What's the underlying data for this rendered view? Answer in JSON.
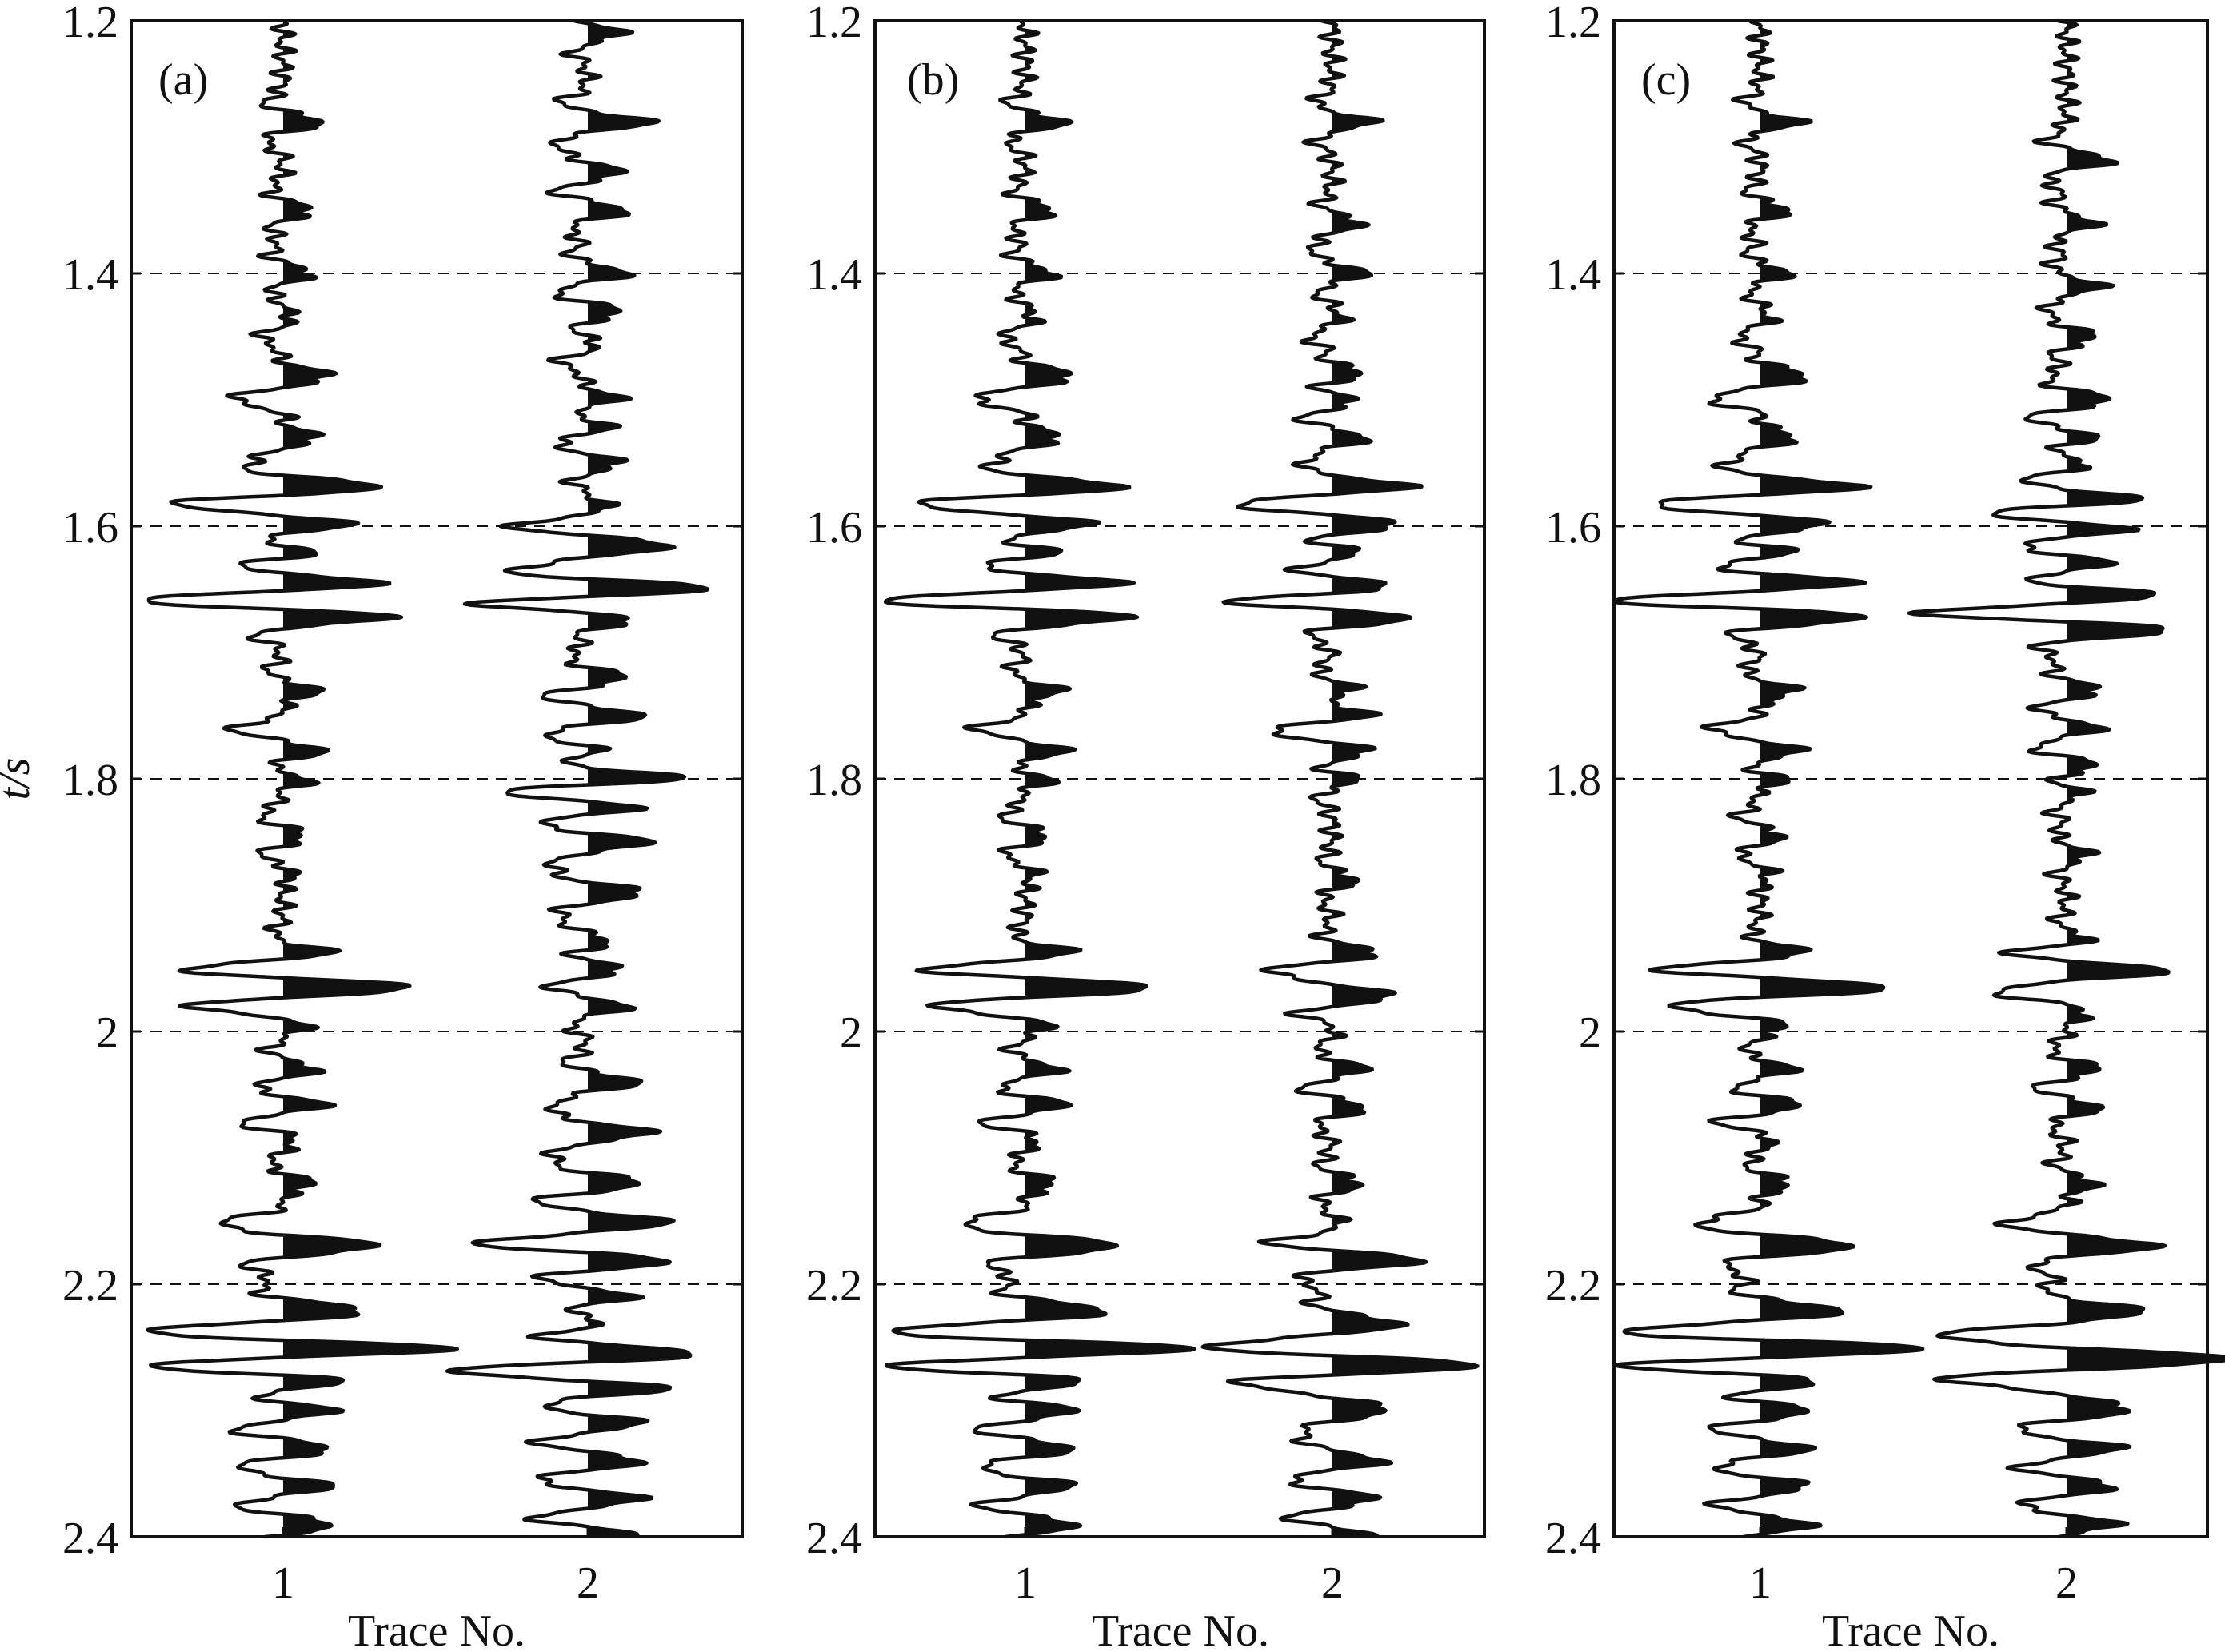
{
  "chart_data": [
    {
      "type": "seismic-wiggle",
      "panel_label": "(a)",
      "xlabel": "Trace No.",
      "ylabel": "t/s",
      "x_ticks": [
        "1",
        "2"
      ],
      "y_ticks": [
        "1.2",
        "1.4",
        "1.6",
        "1.8",
        "2",
        "2.2",
        "2.4"
      ],
      "ylim": [
        1.2,
        2.4
      ],
      "grid": "dashed horizontal at y ticks",
      "traces": [
        {
          "trace": 1,
          "events": [
            [
              1.28,
              0.35
            ],
            [
              1.35,
              0.25
            ],
            [
              1.4,
              0.25
            ],
            [
              1.45,
              -0.2
            ],
            [
              1.48,
              0.3
            ],
            [
              1.5,
              -0.35
            ],
            [
              1.53,
              0.3
            ],
            [
              1.57,
              0.75
            ],
            [
              1.58,
              -0.55
            ],
            [
              1.6,
              0.55
            ],
            [
              1.62,
              0.5
            ],
            [
              1.645,
              0.6
            ],
            [
              1.66,
              -0.85
            ],
            [
              1.67,
              0.75
            ],
            [
              1.73,
              0.3
            ],
            [
              1.76,
              -0.35
            ],
            [
              1.78,
              0.3
            ],
            [
              1.8,
              0.3
            ],
            [
              1.83,
              -0.2
            ],
            [
              1.86,
              -0.2
            ],
            [
              1.94,
              0.3
            ],
            [
              1.95,
              -0.5
            ],
            [
              1.965,
              0.75
            ],
            [
              1.98,
              -0.5
            ],
            [
              2.03,
              0.3
            ],
            [
              2.06,
              0.3
            ],
            [
              2.07,
              -0.3
            ],
            [
              2.12,
              0.25
            ],
            [
              2.15,
              -0.3
            ],
            [
              2.17,
              0.75
            ],
            [
              2.22,
              0.5
            ],
            [
              2.24,
              -0.8
            ],
            [
              2.25,
              1.0
            ],
            [
              2.265,
              -0.75
            ],
            [
              2.275,
              0.45
            ],
            [
              2.3,
              0.5
            ],
            [
              2.33,
              0.45
            ],
            [
              2.36,
              0.45
            ],
            [
              2.39,
              0.45
            ]
          ]
        },
        {
          "trace": 2,
          "events": [
            [
              1.21,
              0.3
            ],
            [
              1.28,
              0.55
            ],
            [
              1.32,
              0.3
            ],
            [
              1.35,
              0.35
            ],
            [
              1.4,
              0.35
            ],
            [
              1.43,
              0.3
            ],
            [
              1.47,
              -0.25
            ],
            [
              1.5,
              0.35
            ],
            [
              1.52,
              0.3
            ],
            [
              1.55,
              0.3
            ],
            [
              1.6,
              -0.45
            ],
            [
              1.615,
              0.5
            ],
            [
              1.64,
              -0.3
            ],
            [
              1.65,
              1.0
            ],
            [
              1.66,
              -0.75
            ],
            [
              1.67,
              0.3
            ],
            [
              1.72,
              0.35
            ],
            [
              1.75,
              0.5
            ],
            [
              1.78,
              0.35
            ],
            [
              1.8,
              0.95
            ],
            [
              1.81,
              -0.5
            ],
            [
              1.82,
              0.5
            ],
            [
              1.85,
              0.55
            ],
            [
              1.89,
              0.5
            ],
            [
              1.93,
              0.3
            ],
            [
              1.95,
              0.4
            ],
            [
              1.98,
              0.35
            ],
            [
              2.04,
              0.45
            ],
            [
              2.08,
              0.55
            ],
            [
              2.12,
              0.5
            ],
            [
              2.15,
              0.55
            ],
            [
              2.17,
              -0.6
            ],
            [
              2.18,
              0.6
            ],
            [
              2.21,
              0.5
            ],
            [
              2.23,
              0.35
            ],
            [
              2.255,
              0.75
            ],
            [
              2.27,
              -0.75
            ],
            [
              2.28,
              0.55
            ],
            [
              2.31,
              0.5
            ],
            [
              2.34,
              0.5
            ],
            [
              2.37,
              0.5
            ],
            [
              2.4,
              0.55
            ]
          ]
        }
      ]
    },
    {
      "type": "seismic-wiggle",
      "panel_label": "(b)",
      "xlabel": "Trace No.",
      "ylabel": "",
      "x_ticks": [
        "1",
        "2"
      ],
      "y_ticks": [
        "1.2",
        "1.4",
        "1.6",
        "1.8",
        "2",
        "2.2",
        "2.4"
      ],
      "ylim": [
        1.2,
        2.4
      ],
      "grid": "dashed horizontal at y ticks",
      "traces": [
        {
          "trace": 1,
          "events": [
            [
              1.28,
              0.35
            ],
            [
              1.35,
              0.25
            ],
            [
              1.4,
              0.25
            ],
            [
              1.45,
              -0.2
            ],
            [
              1.48,
              0.3
            ],
            [
              1.5,
              -0.35
            ],
            [
              1.53,
              0.3
            ],
            [
              1.57,
              0.75
            ],
            [
              1.58,
              -0.55
            ],
            [
              1.6,
              0.55
            ],
            [
              1.62,
              0.5
            ],
            [
              1.645,
              0.6
            ],
            [
              1.66,
              -0.85
            ],
            [
              1.67,
              0.75
            ],
            [
              1.73,
              0.3
            ],
            [
              1.76,
              -0.35
            ],
            [
              1.78,
              0.3
            ],
            [
              1.8,
              0.3
            ],
            [
              1.83,
              -0.2
            ],
            [
              1.86,
              -0.2
            ],
            [
              1.94,
              0.3
            ],
            [
              1.95,
              -0.5
            ],
            [
              1.965,
              0.75
            ],
            [
              1.98,
              -0.5
            ],
            [
              2.03,
              0.3
            ],
            [
              2.06,
              0.3
            ],
            [
              2.07,
              -0.3
            ],
            [
              2.12,
              0.25
            ],
            [
              2.15,
              -0.3
            ],
            [
              2.17,
              0.75
            ],
            [
              2.22,
              0.5
            ],
            [
              2.24,
              -0.8
            ],
            [
              2.25,
              1.0
            ],
            [
              2.265,
              -0.75
            ],
            [
              2.275,
              0.45
            ],
            [
              2.3,
              0.5
            ],
            [
              2.33,
              0.45
            ],
            [
              2.36,
              0.45
            ],
            [
              2.39,
              0.45
            ]
          ]
        },
        {
          "trace": 2,
          "events": [
            [
              1.28,
              0.35
            ],
            [
              1.36,
              0.25
            ],
            [
              1.4,
              0.3
            ],
            [
              1.45,
              -0.2
            ],
            [
              1.48,
              0.35
            ],
            [
              1.5,
              0.3
            ],
            [
              1.53,
              0.3
            ],
            [
              1.57,
              0.55
            ],
            [
              1.58,
              -0.5
            ],
            [
              1.6,
              0.55
            ],
            [
              1.62,
              0.4
            ],
            [
              1.65,
              0.45
            ],
            [
              1.66,
              -0.7
            ],
            [
              1.67,
              0.6
            ],
            [
              1.73,
              0.3
            ],
            [
              1.75,
              0.35
            ],
            [
              1.76,
              -0.35
            ],
            [
              1.78,
              0.3
            ],
            [
              1.8,
              0.3
            ],
            [
              1.88,
              0.2
            ],
            [
              1.94,
              0.3
            ],
            [
              1.95,
              -0.4
            ],
            [
              1.975,
              0.6
            ],
            [
              1.98,
              -0.35
            ],
            [
              2.03,
              0.3
            ],
            [
              2.06,
              0.3
            ],
            [
              2.12,
              0.25
            ],
            [
              2.17,
              -0.3
            ],
            [
              2.18,
              0.75
            ],
            [
              2.23,
              0.4
            ],
            [
              2.25,
              -0.6
            ],
            [
              2.265,
              0.95
            ],
            [
              2.275,
              -0.5
            ],
            [
              2.3,
              0.45
            ],
            [
              2.34,
              0.45
            ],
            [
              2.37,
              0.4
            ],
            [
              2.4,
              0.45
            ]
          ]
        }
      ]
    },
    {
      "type": "seismic-wiggle",
      "panel_label": "(c)",
      "xlabel": "Trace No.",
      "ylabel": "",
      "x_ticks": [
        "1",
        "2"
      ],
      "y_ticks": [
        "1.2",
        "1.4",
        "1.6",
        "1.8",
        "2",
        "2.2",
        "2.4"
      ],
      "ylim": [
        1.2,
        2.4
      ],
      "grid": "dashed horizontal at y ticks",
      "traces": [
        {
          "trace": 1,
          "events": [
            [
              1.28,
              0.35
            ],
            [
              1.35,
              0.25
            ],
            [
              1.4,
              0.25
            ],
            [
              1.45,
              -0.2
            ],
            [
              1.48,
              0.3
            ],
            [
              1.5,
              -0.35
            ],
            [
              1.53,
              0.3
            ],
            [
              1.57,
              0.75
            ],
            [
              1.58,
              -0.55
            ],
            [
              1.6,
              0.55
            ],
            [
              1.62,
              0.5
            ],
            [
              1.645,
              0.6
            ],
            [
              1.66,
              -0.85
            ],
            [
              1.67,
              0.75
            ],
            [
              1.73,
              0.3
            ],
            [
              1.76,
              -0.35
            ],
            [
              1.78,
              0.3
            ],
            [
              1.8,
              0.3
            ],
            [
              1.83,
              -0.2
            ],
            [
              1.86,
              -0.2
            ],
            [
              1.94,
              0.3
            ],
            [
              1.95,
              -0.5
            ],
            [
              1.965,
              0.75
            ],
            [
              1.98,
              -0.5
            ],
            [
              2.03,
              0.3
            ],
            [
              2.06,
              0.3
            ],
            [
              2.07,
              -0.3
            ],
            [
              2.12,
              0.25
            ],
            [
              2.15,
              -0.3
            ],
            [
              2.17,
              0.75
            ],
            [
              2.22,
              0.5
            ],
            [
              2.24,
              -0.8
            ],
            [
              2.25,
              1.0
            ],
            [
              2.265,
              -0.75
            ],
            [
              2.275,
              0.45
            ],
            [
              2.3,
              0.5
            ],
            [
              2.33,
              0.45
            ],
            [
              2.36,
              0.45
            ],
            [
              2.39,
              0.45
            ]
          ]
        },
        {
          "trace": 2,
          "events": [
            [
              1.31,
              0.4
            ],
            [
              1.36,
              0.25
            ],
            [
              1.41,
              0.3
            ],
            [
              1.45,
              0.25
            ],
            [
              1.5,
              0.4
            ],
            [
              1.53,
              0.35
            ],
            [
              1.55,
              0.3
            ],
            [
              1.58,
              0.65
            ],
            [
              1.59,
              -0.5
            ],
            [
              1.6,
              0.55
            ],
            [
              1.63,
              0.45
            ],
            [
              1.655,
              0.55
            ],
            [
              1.67,
              -0.85
            ],
            [
              1.68,
              0.75
            ],
            [
              1.73,
              0.3
            ],
            [
              1.76,
              0.3
            ],
            [
              1.79,
              0.35
            ],
            [
              1.81,
              0.25
            ],
            [
              1.86,
              0.2
            ],
            [
              1.93,
              0.25
            ],
            [
              1.94,
              -0.3
            ],
            [
              1.95,
              0.75
            ],
            [
              1.97,
              -0.4
            ],
            [
              2.03,
              0.3
            ],
            [
              2.06,
              0.3
            ],
            [
              2.12,
              0.25
            ],
            [
              2.15,
              -0.3
            ],
            [
              2.17,
              0.7
            ],
            [
              2.22,
              0.45
            ],
            [
              2.24,
              -0.7
            ],
            [
              2.26,
              1.0
            ],
            [
              2.275,
              -0.6
            ],
            [
              2.3,
              0.5
            ],
            [
              2.33,
              0.5
            ],
            [
              2.36,
              0.45
            ],
            [
              2.39,
              0.45
            ]
          ]
        }
      ]
    }
  ]
}
